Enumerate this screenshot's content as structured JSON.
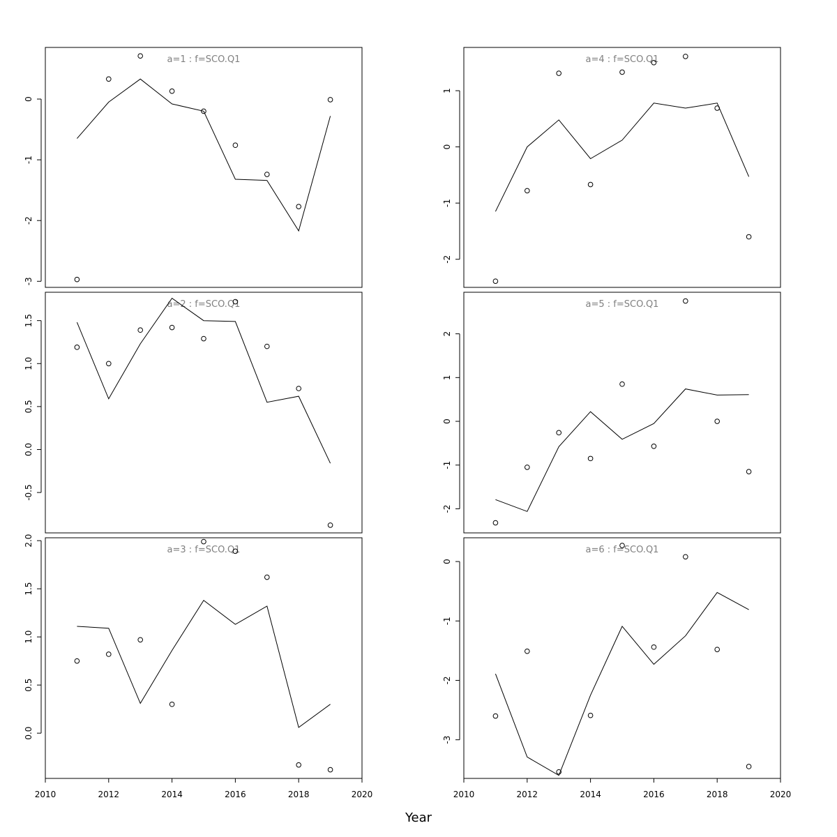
{
  "figure": {
    "xlabel": "Year"
  },
  "chart_data": [
    {
      "type": "line",
      "title": "a=1  :  f=SCO.Q1",
      "x": [
        2011,
        2012,
        2013,
        2014,
        2015,
        2016,
        2017,
        2018,
        2019
      ],
      "series": [
        {
          "values": [
            -0.65,
            -0.05,
            0.33,
            -0.08,
            -0.2,
            -1.32,
            -1.34,
            -2.17,
            -0.28
          ]
        },
        {
          "marker": "open-circle",
          "values": [
            -2.97,
            0.33,
            0.71,
            0.13,
            -0.2,
            -0.76,
            -1.24,
            -1.77,
            -0.01
          ]
        }
      ],
      "xlim": [
        2010,
        2020
      ],
      "ylim": [
        -3.1,
        0.85
      ],
      "yticks": [
        0,
        -1,
        -2,
        -3
      ],
      "xtick_labels_shown": false
    },
    {
      "type": "line",
      "title": "a=2  :  f=SCO.Q1",
      "x": [
        2011,
        2012,
        2013,
        2014,
        2015,
        2016,
        2017,
        2018,
        2019
      ],
      "series": [
        {
          "values": [
            1.48,
            0.59,
            1.23,
            1.76,
            1.5,
            1.49,
            0.55,
            0.62,
            -0.16
          ]
        },
        {
          "marker": "open-circle",
          "values": [
            1.19,
            1.0,
            1.39,
            1.42,
            1.29,
            1.72,
            1.2,
            0.71,
            -0.88
          ]
        }
      ],
      "xlim": [
        2010,
        2020
      ],
      "ylim": [
        -0.97,
        1.83
      ],
      "yticks": [
        1.5,
        1.0,
        0.5,
        0.0,
        -0.5
      ],
      "yticks_text": [
        "1.5",
        "1.0",
        "0.5",
        "0.0",
        "-0.5"
      ],
      "xtick_labels_shown": false
    },
    {
      "type": "line",
      "title": "a=3  :  f=SCO.Q1",
      "x": [
        2011,
        2012,
        2013,
        2014,
        2015,
        2016,
        2017,
        2018,
        2019
      ],
      "series": [
        {
          "values": [
            1.11,
            1.09,
            0.31,
            0.86,
            1.38,
            1.13,
            1.32,
            0.06,
            0.3
          ]
        },
        {
          "marker": "open-circle",
          "values": [
            0.75,
            0.82,
            0.97,
            0.3,
            1.99,
            1.89,
            1.62,
            -0.33,
            -0.38
          ]
        }
      ],
      "xlim": [
        2010,
        2020
      ],
      "ylim": [
        -0.47,
        2.03
      ],
      "yticks": [
        2.0,
        1.5,
        1.0,
        0.5,
        0.0
      ],
      "yticks_text": [
        "2.0",
        "1.5",
        "1.0",
        "0.5",
        "0.0"
      ],
      "xticks": [
        2010,
        2012,
        2014,
        2016,
        2018,
        2020
      ],
      "xtick_labels_shown": true
    },
    {
      "type": "line",
      "title": "a=4  :  f=SCO.Q1",
      "x": [
        2011,
        2012,
        2013,
        2014,
        2015,
        2016,
        2017,
        2018,
        2019
      ],
      "series": [
        {
          "values": [
            -1.15,
            0.0,
            0.48,
            -0.21,
            0.12,
            0.78,
            0.69,
            0.78,
            -0.53
          ]
        },
        {
          "marker": "open-circle",
          "values": [
            -2.39,
            -0.78,
            1.31,
            -0.67,
            1.33,
            1.5,
            1.61,
            0.69,
            -1.6
          ]
        }
      ],
      "xlim": [
        2010,
        2020
      ],
      "ylim": [
        -2.5,
        1.77
      ],
      "yticks": [
        1,
        0,
        -1,
        -2
      ],
      "xtick_labels_shown": false
    },
    {
      "type": "line",
      "title": "a=5  :  f=SCO.Q1",
      "x": [
        2011,
        2012,
        2013,
        2014,
        2015,
        2016,
        2017,
        2018,
        2019
      ],
      "series": [
        {
          "values": [
            -1.79,
            -2.06,
            -0.58,
            0.22,
            -0.41,
            -0.05,
            0.74,
            0.6,
            0.61
          ]
        },
        {
          "marker": "open-circle",
          "values": [
            -2.32,
            -1.05,
            -0.26,
            -0.85,
            0.85,
            -0.57,
            2.75,
            0.0,
            -1.15
          ]
        }
      ],
      "xlim": [
        2010,
        2020
      ],
      "ylim": [
        -2.55,
        2.95
      ],
      "yticks": [
        2,
        1,
        0,
        -1,
        -2
      ],
      "xtick_labels_shown": false
    },
    {
      "type": "line",
      "title": "a=6  :  f=SCO.Q1",
      "x": [
        2011,
        2012,
        2013,
        2014,
        2015,
        2016,
        2017,
        2018,
        2019
      ],
      "series": [
        {
          "values": [
            -1.89,
            -3.29,
            -3.6,
            -2.25,
            -1.09,
            -1.73,
            -1.25,
            -0.52,
            -0.81
          ]
        },
        {
          "marker": "open-circle",
          "values": [
            -2.6,
            -1.51,
            -3.54,
            -2.59,
            0.27,
            -1.44,
            0.08,
            -1.48,
            -3.45
          ]
        }
      ],
      "xlim": [
        2010,
        2020
      ],
      "ylim": [
        -3.65,
        0.4
      ],
      "yticks": [
        0,
        -1,
        -2,
        -3
      ],
      "xticks": [
        2010,
        2012,
        2014,
        2016,
        2018,
        2020
      ],
      "xtick_labels_shown": true
    }
  ]
}
